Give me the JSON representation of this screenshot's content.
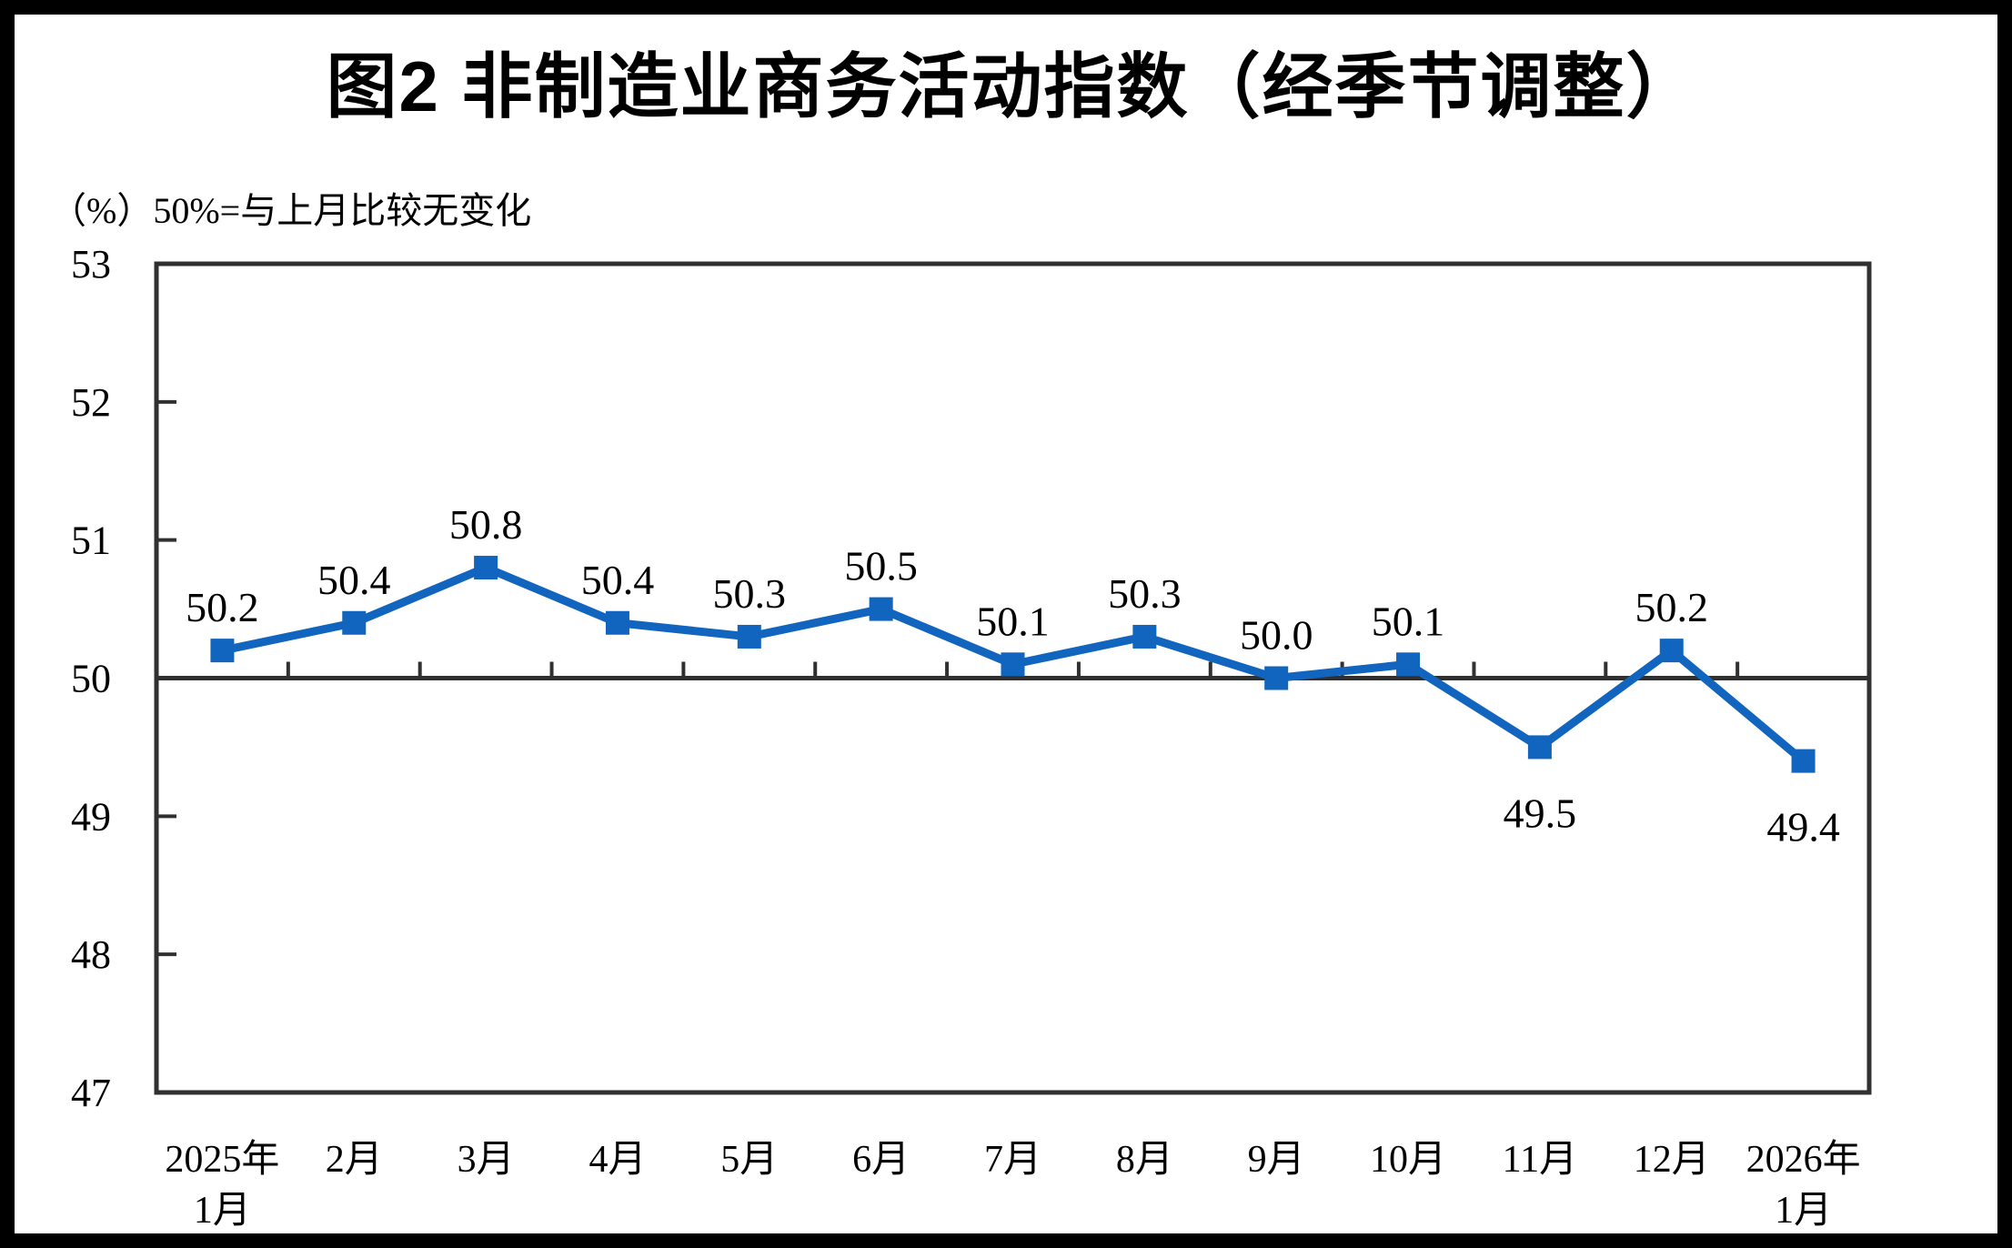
{
  "figure": {
    "title": "图2 非制造业商务活动指数（经季节调整）",
    "unit_note": "（%）50%=与上月比较无变化"
  },
  "colors": {
    "series": "#1165BE",
    "axis": "#303030",
    "text": "#000000",
    "background": "#FFFFFF",
    "outer_frame": "#000000"
  },
  "chart_data": {
    "type": "line",
    "title": "图2 非制造业商务活动指数（经季节调整）",
    "unit_note": "（%）50%=与上月比较无变化",
    "categories": [
      [
        "2025年",
        "1月"
      ],
      [
        "2月"
      ],
      [
        "3月"
      ],
      [
        "4月"
      ],
      [
        "5月"
      ],
      [
        "6月"
      ],
      [
        "7月"
      ],
      [
        "8月"
      ],
      [
        "9月"
      ],
      [
        "10月"
      ],
      [
        "11月"
      ],
      [
        "12月"
      ],
      [
        "2026年",
        "1月"
      ]
    ],
    "values": [
      50.2,
      50.4,
      50.8,
      50.4,
      50.3,
      50.5,
      50.1,
      50.3,
      50.0,
      50.1,
      49.5,
      50.2,
      49.4
    ],
    "point_labels": [
      "50.2",
      "50.4",
      "50.8",
      "50.4",
      "50.3",
      "50.5",
      "50.1",
      "50.3",
      "50.0",
      "50.1",
      "49.5",
      "50.2",
      "49.4"
    ],
    "ylim": [
      47,
      53
    ],
    "y_ticks": [
      53,
      52,
      51,
      50,
      49,
      48,
      47
    ],
    "reference_value": 50,
    "marker": "square",
    "grid": false,
    "legend": "none"
  }
}
